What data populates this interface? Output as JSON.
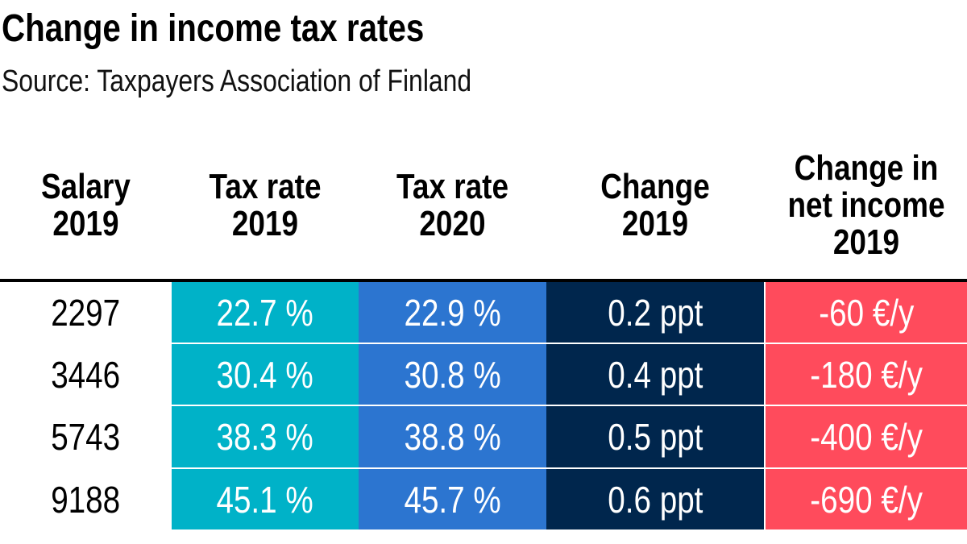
{
  "chart_data": {
    "type": "table",
    "title": "Change in income tax rates",
    "subtitle": "Source: Taxpayers Association of Finland",
    "headers": [
      "Salary 2019",
      "Tax rate 2019",
      "Tax rate 2020",
      "Change 2019",
      "Change in net income 2019"
    ],
    "rows": [
      [
        "2297",
        "22.7 %",
        "22.9 %",
        "0.2 ppt",
        "-60 €/y"
      ],
      [
        "3446",
        "30.4 %",
        "30.8 %",
        "0.4 ppt",
        "-180 €/y"
      ],
      [
        "5743",
        "38.3 %",
        "38.8 %",
        "0.5 ppt",
        "-400 €/y"
      ],
      [
        "9188",
        "45.1 %",
        "45.7 %",
        "0.6 ppt",
        "-690 €/y"
      ]
    ],
    "column_colors": [
      "#ffffff",
      "#00b2c8",
      "#2c75d0",
      "#00264d",
      "#ff4b5c"
    ]
  }
}
